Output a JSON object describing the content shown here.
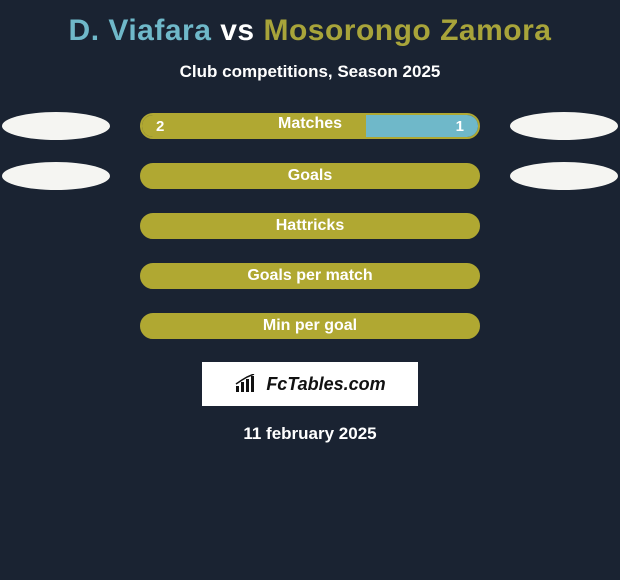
{
  "title": {
    "player1": "D. Viafara",
    "vs": "vs",
    "player2": "Mosorongo Zamora",
    "player1_color": "#6fb8c9",
    "vs_color": "#ffffff",
    "player2_color": "#a8a43a"
  },
  "subtitle": "Club competitions, Season 2025",
  "border_color": "#b0a832",
  "fill_color": "#b0a832",
  "right_seg_color": "#6fb8c9",
  "bars": [
    {
      "key": "matches",
      "label": "Matches",
      "left_value": "2",
      "right_value": "1",
      "left_pct": 66.7,
      "right_pct": 33.3,
      "show_left_oval": true,
      "show_right_oval": true,
      "split": true
    },
    {
      "key": "goals",
      "label": "Goals",
      "show_left_oval": true,
      "show_right_oval": true,
      "split": false
    },
    {
      "key": "hattricks",
      "label": "Hattricks",
      "show_left_oval": false,
      "show_right_oval": false,
      "split": false
    },
    {
      "key": "goals_per_match",
      "label": "Goals per match",
      "show_left_oval": false,
      "show_right_oval": false,
      "split": false
    },
    {
      "key": "min_per_goal",
      "label": "Min per goal",
      "show_left_oval": false,
      "show_right_oval": false,
      "split": false
    }
  ],
  "logo": {
    "text": "FcTables.com",
    "icon_color": "#111111"
  },
  "date": "11 february 2025",
  "background_color": "#1a2332",
  "oval_color": "#f5f5f2"
}
